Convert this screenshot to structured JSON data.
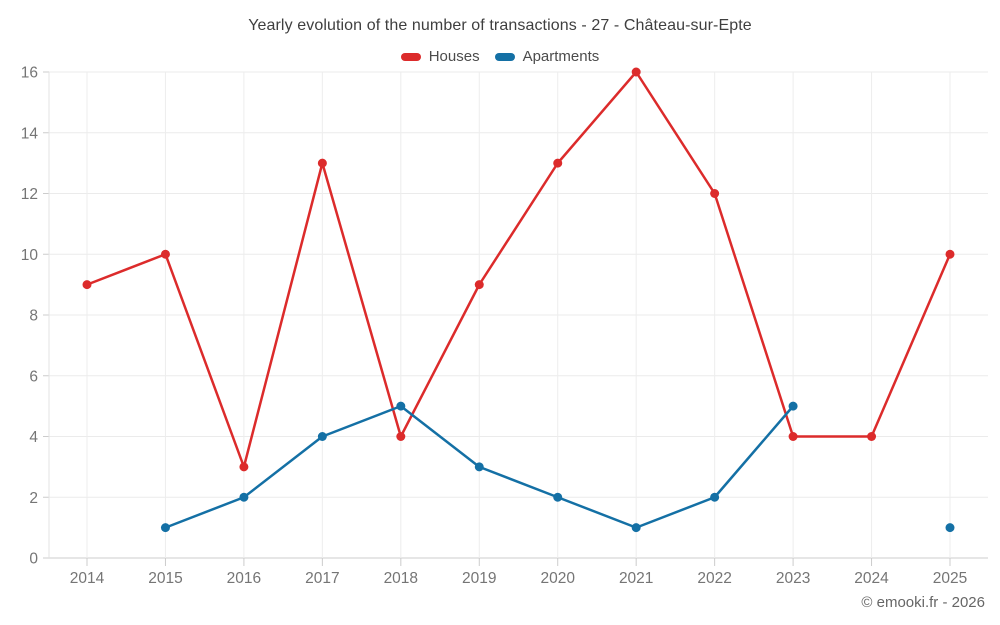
{
  "header": {
    "title": "Yearly evolution of the number of transactions - 27 - Château-sur-Epte"
  },
  "legend": {
    "items": [
      {
        "label": "Houses",
        "color": "#dc2b2b"
      },
      {
        "label": "Apartments",
        "color": "#1470a5"
      }
    ]
  },
  "footer": {
    "copyright": "© emooki.fr - 2026"
  },
  "chart_data": {
    "type": "line",
    "title": "Yearly evolution of the number of transactions - 27 - Château-sur-Epte",
    "x": [
      2014,
      2015,
      2016,
      2017,
      2018,
      2019,
      2020,
      2021,
      2022,
      2023,
      2024,
      2025
    ],
    "series": [
      {
        "name": "Houses",
        "color": "#dc2b2b",
        "values": [
          9,
          10,
          3,
          13,
          4,
          9,
          13,
          16,
          12,
          4,
          4,
          10
        ]
      },
      {
        "name": "Apartments",
        "color": "#1470a5",
        "values": [
          null,
          1,
          2,
          4,
          5,
          3,
          2,
          1,
          2,
          5,
          null,
          1
        ]
      }
    ],
    "xlabel": "",
    "ylabel": "",
    "ylim": [
      0,
      16
    ],
    "ytick_step": 2,
    "grid": true,
    "legend_position": "top"
  }
}
